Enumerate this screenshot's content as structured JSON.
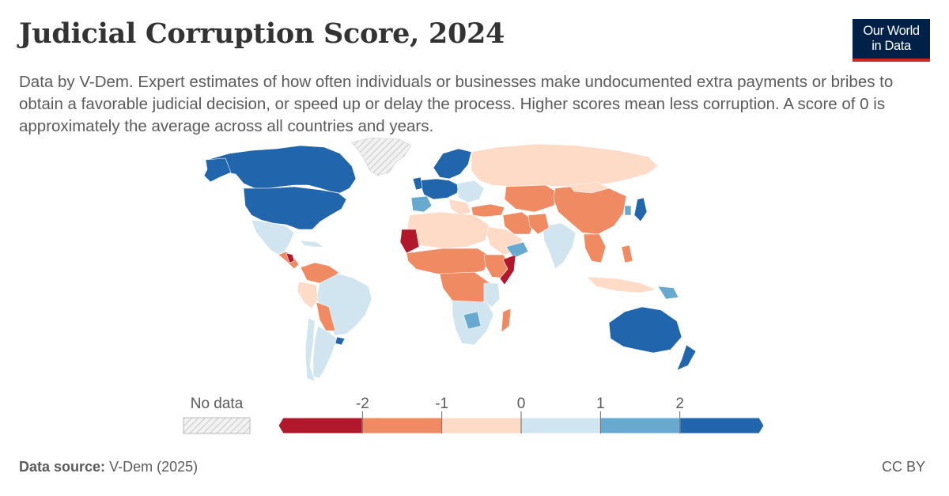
{
  "header": {
    "title": "Judicial Corruption Score, 2024",
    "subtitle": "Data by V-Dem. Expert estimates of how often individuals or businesses make undocumented extra payments or bribes to obtain a favorable judicial decision, or speed up or delay the process. Higher scores mean less corruption. A score of 0 is approximately the average across all countries and years.",
    "logo_line1": "Our World",
    "logo_line2": "in Data"
  },
  "legend": {
    "no_data_label": "No data",
    "ticks": [
      "-2",
      "-1",
      "0",
      "1",
      "2"
    ],
    "bins": [
      {
        "color": "#b2182b"
      },
      {
        "color": "#ef8a62"
      },
      {
        "color": "#fddbc7"
      },
      {
        "color": "#d1e5f0"
      },
      {
        "color": "#67a9cf"
      },
      {
        "color": "#2166ac"
      }
    ]
  },
  "colors": {
    "dark_red": "#b2182b",
    "orange": "#ef8a62",
    "light_orange": "#fddbc7",
    "light_blue": "#d1e5f0",
    "mid_blue": "#67a9cf",
    "dark_blue": "#2166ac",
    "no_data": "#e6e6e6"
  },
  "footer": {
    "source_label": "Data source:",
    "source_value": "V-Dem (2025)",
    "license": "CC BY"
  }
}
